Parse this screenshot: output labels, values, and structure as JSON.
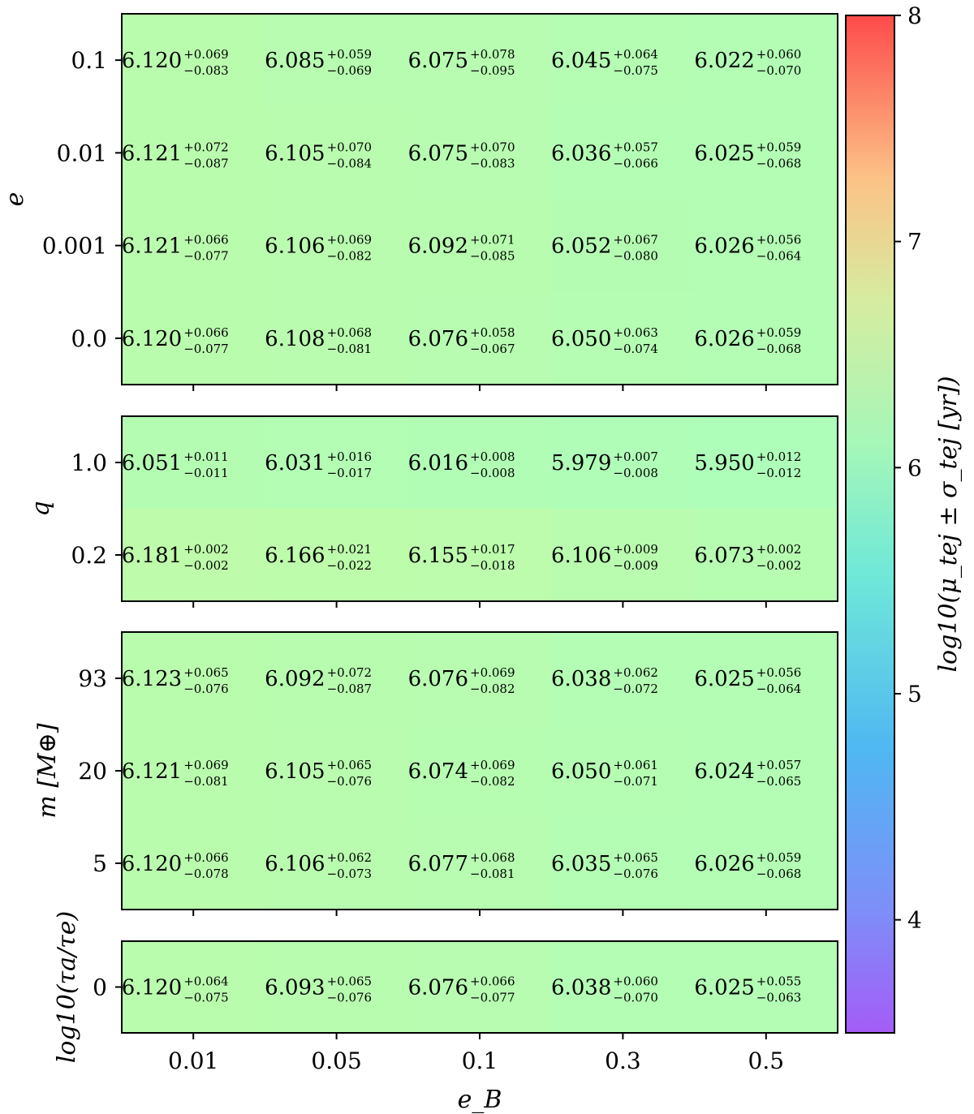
{
  "chart_data": {
    "type": "heatmap",
    "colormap": "rainbow",
    "alpha": 0.75,
    "xlabel": "e_B",
    "x_categories": [
      "0.01",
      "0.05",
      "0.1",
      "0.3",
      "0.5"
    ],
    "colorbar": {
      "label": "log10(μ_tej ± σ_tej [yr])",
      "vmin": 3.5,
      "vmax": 8,
      "ticks": [
        "4",
        "5",
        "6",
        "7",
        "8"
      ],
      "tick_values": [
        4,
        5,
        6,
        7,
        8
      ]
    },
    "panels": [
      {
        "ylabel": "e",
        "rows": [
          {
            "label": "0.1",
            "cells": [
              {
                "value": "6.120",
                "plus": "+0.069",
                "minus": "−0.083"
              },
              {
                "value": "6.085",
                "plus": "+0.059",
                "minus": "−0.069"
              },
              {
                "value": "6.075",
                "plus": "+0.078",
                "minus": "−0.095"
              },
              {
                "value": "6.045",
                "plus": "+0.064",
                "minus": "−0.075"
              },
              {
                "value": "6.022",
                "plus": "+0.060",
                "minus": "−0.070"
              }
            ]
          },
          {
            "label": "0.01",
            "cells": [
              {
                "value": "6.121",
                "plus": "+0.072",
                "minus": "−0.087"
              },
              {
                "value": "6.105",
                "plus": "+0.070",
                "minus": "−0.084"
              },
              {
                "value": "6.075",
                "plus": "+0.070",
                "minus": "−0.083"
              },
              {
                "value": "6.036",
                "plus": "+0.057",
                "minus": "−0.066"
              },
              {
                "value": "6.025",
                "plus": "+0.059",
                "minus": "−0.068"
              }
            ]
          },
          {
            "label": "0.001",
            "cells": [
              {
                "value": "6.121",
                "plus": "+0.066",
                "minus": "−0.077"
              },
              {
                "value": "6.106",
                "plus": "+0.069",
                "minus": "−0.082"
              },
              {
                "value": "6.092",
                "plus": "+0.071",
                "minus": "−0.085"
              },
              {
                "value": "6.052",
                "plus": "+0.067",
                "minus": "−0.080"
              },
              {
                "value": "6.026",
                "plus": "+0.056",
                "minus": "−0.064"
              }
            ]
          },
          {
            "label": "0.0",
            "cells": [
              {
                "value": "6.120",
                "plus": "+0.066",
                "minus": "−0.077"
              },
              {
                "value": "6.108",
                "plus": "+0.068",
                "minus": "−0.081"
              },
              {
                "value": "6.076",
                "plus": "+0.058",
                "minus": "−0.067"
              },
              {
                "value": "6.050",
                "plus": "+0.063",
                "minus": "−0.074"
              },
              {
                "value": "6.026",
                "plus": "+0.059",
                "minus": "−0.068"
              }
            ]
          }
        ]
      },
      {
        "ylabel": "q",
        "rows": [
          {
            "label": "1.0",
            "cells": [
              {
                "value": "6.051",
                "plus": "+0.011",
                "minus": "−0.011"
              },
              {
                "value": "6.031",
                "plus": "+0.016",
                "minus": "−0.017"
              },
              {
                "value": "6.016",
                "plus": "+0.008",
                "minus": "−0.008"
              },
              {
                "value": "5.979",
                "plus": "+0.007",
                "minus": "−0.008"
              },
              {
                "value": "5.950",
                "plus": "+0.012",
                "minus": "−0.012"
              }
            ]
          },
          {
            "label": "0.2",
            "cells": [
              {
                "value": "6.181",
                "plus": "+0.002",
                "minus": "−0.002"
              },
              {
                "value": "6.166",
                "plus": "+0.021",
                "minus": "−0.022"
              },
              {
                "value": "6.155",
                "plus": "+0.017",
                "minus": "−0.018"
              },
              {
                "value": "6.106",
                "plus": "+0.009",
                "minus": "−0.009"
              },
              {
                "value": "6.073",
                "plus": "+0.002",
                "minus": "−0.002"
              }
            ]
          }
        ]
      },
      {
        "ylabel": "m [M⊕]",
        "rows": [
          {
            "label": "93",
            "cells": [
              {
                "value": "6.123",
                "plus": "+0.065",
                "minus": "−0.076"
              },
              {
                "value": "6.092",
                "plus": "+0.072",
                "minus": "−0.087"
              },
              {
                "value": "6.076",
                "plus": "+0.069",
                "minus": "−0.082"
              },
              {
                "value": "6.038",
                "plus": "+0.062",
                "minus": "−0.072"
              },
              {
                "value": "6.025",
                "plus": "+0.056",
                "minus": "−0.064"
              }
            ]
          },
          {
            "label": "20",
            "cells": [
              {
                "value": "6.121",
                "plus": "+0.069",
                "minus": "−0.081"
              },
              {
                "value": "6.105",
                "plus": "+0.065",
                "minus": "−0.076"
              },
              {
                "value": "6.074",
                "plus": "+0.069",
                "minus": "−0.082"
              },
              {
                "value": "6.050",
                "plus": "+0.061",
                "minus": "−0.071"
              },
              {
                "value": "6.024",
                "plus": "+0.057",
                "minus": "−0.065"
              }
            ]
          },
          {
            "label": "5",
            "cells": [
              {
                "value": "6.120",
                "plus": "+0.066",
                "minus": "−0.078"
              },
              {
                "value": "6.106",
                "plus": "+0.062",
                "minus": "−0.073"
              },
              {
                "value": "6.077",
                "plus": "+0.068",
                "minus": "−0.081"
              },
              {
                "value": "6.035",
                "plus": "+0.065",
                "minus": "−0.076"
              },
              {
                "value": "6.026",
                "plus": "+0.059",
                "minus": "−0.068"
              }
            ]
          }
        ]
      },
      {
        "ylabel": "log10(τa/τe)",
        "rows": [
          {
            "label": "0",
            "cells": [
              {
                "value": "6.120",
                "plus": "+0.064",
                "minus": "−0.075"
              },
              {
                "value": "6.093",
                "plus": "+0.065",
                "minus": "−0.076"
              },
              {
                "value": "6.076",
                "plus": "+0.066",
                "minus": "−0.077"
              },
              {
                "value": "6.038",
                "plus": "+0.060",
                "minus": "−0.070"
              },
              {
                "value": "6.025",
                "plus": "+0.055",
                "minus": "−0.063"
              }
            ]
          }
        ]
      }
    ]
  }
}
